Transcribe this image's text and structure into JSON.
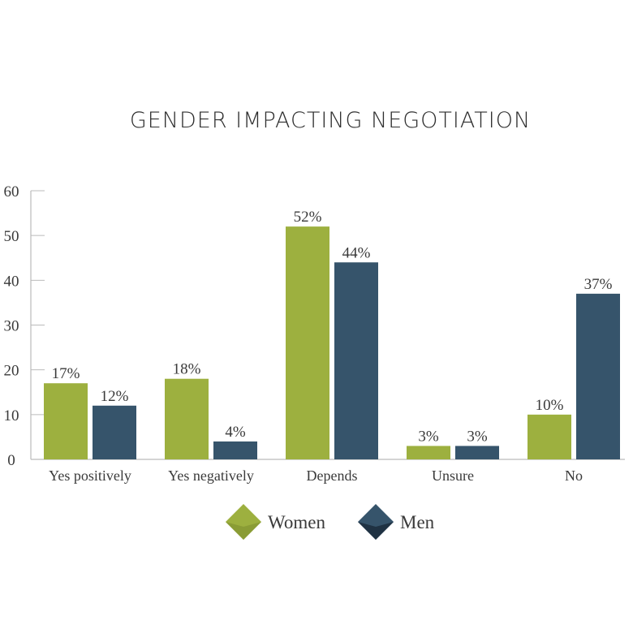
{
  "chart_data": {
    "type": "bar",
    "title": "GENDER IMPACTING NEGOTIATION",
    "categories": [
      "Yes positively",
      "Yes negatively",
      "Depends",
      "Unsure",
      "No"
    ],
    "series": [
      {
        "name": "Women",
        "values": [
          17,
          18,
          52,
          3,
          10
        ],
        "labels": [
          "17%",
          "18%",
          "52%",
          "3%",
          "10%"
        ],
        "color": "#9db03f"
      },
      {
        "name": "Men",
        "values": [
          12,
          4,
          44,
          3,
          37
        ],
        "labels": [
          "12%",
          "4%",
          "44%",
          "3%",
          "37%"
        ],
        "color": "#36546b"
      }
    ],
    "ylim": [
      0,
      60
    ],
    "yticks": [
      "0",
      "10",
      "20",
      "30",
      "40",
      "50",
      "60"
    ],
    "grid": false,
    "legend_position": "bottom",
    "xlabel": "",
    "ylabel": ""
  }
}
